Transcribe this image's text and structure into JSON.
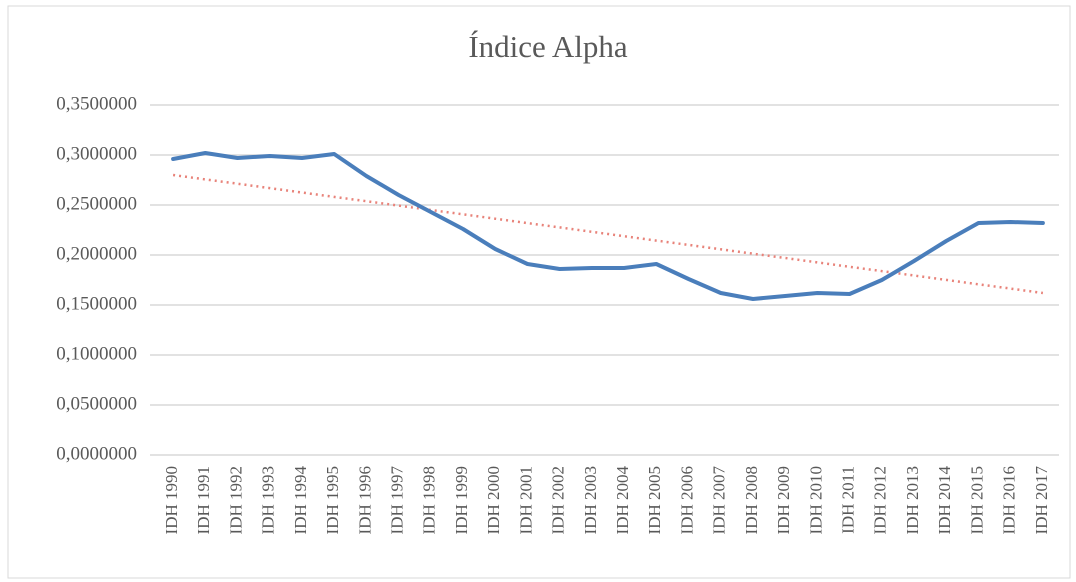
{
  "chart_data": {
    "type": "line",
    "title": "Índice Alpha",
    "categories": [
      "IDH 1990",
      "IDH 1991",
      "IDH 1992",
      "IDH 1993",
      "IDH 1994",
      "IDH 1995",
      "IDH 1996",
      "IDH 1997",
      "IDH 1998",
      "IDH 1999",
      "IDH 2000",
      "IDH 2001",
      "IDH 2002",
      "IDH 2003",
      "IDH 2004",
      "IDH 2005",
      "IDH 2006",
      "IDH 2007",
      "IDH 2008",
      "IDH 2009",
      "IDH 2010",
      "IDH 2011",
      "IDH 2012",
      "IDH 2013",
      "IDH 2014",
      "IDH 2015",
      "IDH 2016",
      "IDH 2017"
    ],
    "values": [
      0.296,
      0.302,
      0.297,
      0.299,
      0.297,
      0.301,
      0.279,
      0.26,
      0.243,
      0.226,
      0.206,
      0.191,
      0.186,
      0.187,
      0.187,
      0.191,
      0.176,
      0.162,
      0.156,
      0.159,
      0.162,
      0.161,
      0.175,
      0.194,
      0.214,
      0.232,
      0.233,
      0.232
    ],
    "color": "#4a7ebb",
    "trendline": {
      "color": "#e8837a",
      "values": [
        0.28,
        0.2756,
        0.2713,
        0.2669,
        0.2625,
        0.2581,
        0.2538,
        0.2494,
        0.245,
        0.2407,
        0.2363,
        0.2319,
        0.2276,
        0.2232,
        0.2188,
        0.2144,
        0.2101,
        0.2057,
        0.2013,
        0.197,
        0.1926,
        0.1882,
        0.1839,
        0.1795,
        0.1751,
        0.1707,
        0.1664,
        0.162
      ]
    },
    "ylim": [
      0,
      0.35
    ],
    "yticks": [
      {
        "value": 0,
        "label": "0,0000000"
      },
      {
        "value": 0.05,
        "label": "0,0500000"
      },
      {
        "value": 0.1,
        "label": "0,1000000"
      },
      {
        "value": 0.15,
        "label": "0,1500000"
      },
      {
        "value": 0.2,
        "label": "0,2000000"
      },
      {
        "value": 0.25,
        "label": "0,2500000"
      },
      {
        "value": 0.3,
        "label": "0,3000000"
      },
      {
        "value": 0.35,
        "label": "0,3500000"
      }
    ],
    "grid": true
  }
}
